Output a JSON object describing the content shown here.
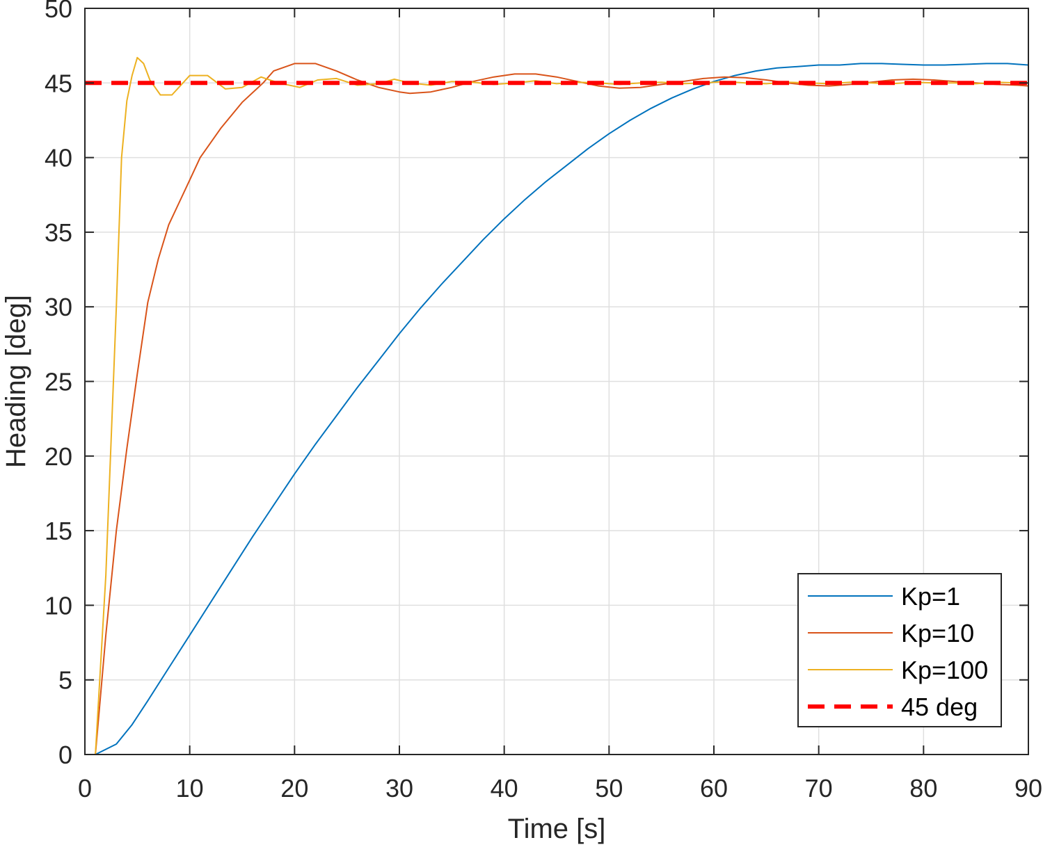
{
  "chart_data": {
    "type": "line",
    "xlabel": "Time [s]",
    "ylabel": "Heading [deg]",
    "xlim": [
      0,
      90
    ],
    "ylim": [
      0,
      50
    ],
    "xticks": [
      0,
      10,
      20,
      30,
      40,
      50,
      60,
      70,
      80,
      90
    ],
    "yticks": [
      0,
      5,
      10,
      15,
      20,
      25,
      30,
      35,
      40,
      45,
      50
    ],
    "grid": true,
    "legend_position": "bottom-right",
    "series": [
      {
        "name": "Kp=1",
        "color": "#0072BD",
        "style": "solid",
        "x": [
          0,
          1,
          3,
          4.5,
          6,
          8,
          10,
          12,
          14,
          16,
          18,
          20,
          22,
          24,
          26,
          28,
          30,
          32,
          34,
          36,
          38,
          40,
          42,
          44,
          46,
          48,
          50,
          52,
          54,
          56,
          58,
          60,
          62,
          64,
          66,
          68,
          70,
          72,
          74,
          76,
          78,
          80,
          82,
          84,
          86,
          88,
          90
        ],
        "y": [
          0,
          0,
          0.7,
          2.0,
          3.6,
          5.8,
          8.0,
          10.2,
          12.4,
          14.6,
          16.7,
          18.8,
          20.8,
          22.7,
          24.6,
          26.4,
          28.2,
          29.9,
          31.5,
          33.0,
          34.5,
          35.9,
          37.2,
          38.4,
          39.5,
          40.6,
          41.6,
          42.5,
          43.3,
          44.0,
          44.6,
          45.1,
          45.5,
          45.8,
          46.0,
          46.1,
          46.2,
          46.2,
          46.3,
          46.3,
          46.25,
          46.2,
          46.2,
          46.25,
          46.3,
          46.3,
          46.2
        ]
      },
      {
        "name": "Kp=10",
        "color": "#D95319",
        "style": "solid",
        "x": [
          0,
          1,
          1.5,
          2,
          3,
          4,
          5,
          6,
          7,
          8,
          9,
          10,
          11,
          13,
          15,
          17,
          18,
          20,
          22,
          24,
          26,
          28,
          30,
          31,
          33,
          35,
          37,
          39,
          41,
          43,
          45,
          47,
          49,
          51,
          53,
          55,
          57,
          59,
          61,
          63,
          65,
          67,
          69,
          71,
          73,
          75,
          77,
          79,
          81,
          83,
          85,
          87,
          89,
          90
        ],
        "y": [
          0,
          0,
          4.0,
          8.0,
          15.0,
          20.5,
          25.5,
          30.3,
          33.2,
          35.5,
          37.0,
          38.5,
          40.0,
          42.0,
          43.7,
          45.0,
          45.8,
          46.3,
          46.3,
          45.8,
          45.2,
          44.7,
          44.4,
          44.3,
          44.4,
          44.7,
          45.1,
          45.4,
          45.6,
          45.6,
          45.4,
          45.1,
          44.8,
          44.65,
          44.7,
          44.9,
          45.1,
          45.3,
          45.4,
          45.35,
          45.2,
          45.0,
          44.85,
          44.8,
          44.9,
          45.05,
          45.2,
          45.25,
          45.2,
          45.1,
          45.0,
          44.9,
          44.85,
          44.8
        ]
      },
      {
        "name": "Kp=100",
        "color": "#EDB120",
        "style": "solid",
        "x": [
          0,
          1,
          2,
          3,
          3.5,
          4,
          4.5,
          5,
          5.6,
          6.2,
          7.2,
          8.3,
          10,
          11.7,
          13.4,
          15,
          16.8,
          18.5,
          20.5,
          22.2,
          24,
          26,
          28,
          29.5,
          31,
          33,
          35,
          37,
          39,
          41,
          43,
          45,
          47,
          49,
          51,
          53,
          55,
          57,
          59,
          61,
          63,
          65,
          67,
          69,
          71,
          73,
          75,
          77,
          79,
          81,
          83,
          85,
          87,
          89,
          90
        ],
        "y": [
          0,
          0,
          12.0,
          30.0,
          40.0,
          43.8,
          45.5,
          46.7,
          46.3,
          45.2,
          44.2,
          44.2,
          45.5,
          45.5,
          44.6,
          44.7,
          45.4,
          45.0,
          44.7,
          45.2,
          45.3,
          44.85,
          44.95,
          45.25,
          45.0,
          44.85,
          45.1,
          45.05,
          44.9,
          45.0,
          45.15,
          44.95,
          45.05,
          45.0,
          44.9,
          45.0,
          45.05,
          44.95,
          45.0,
          45.1,
          45.0,
          44.95,
          45.05,
          45.0,
          44.95,
          45.05,
          45.0,
          44.95,
          45.05,
          45.0,
          45.0,
          44.95,
          45.05,
          45.0,
          45.0
        ]
      },
      {
        "name": "45 deg",
        "color": "#FF0000",
        "style": "dashed",
        "x": [
          0,
          90
        ],
        "y": [
          45,
          45
        ]
      }
    ]
  }
}
